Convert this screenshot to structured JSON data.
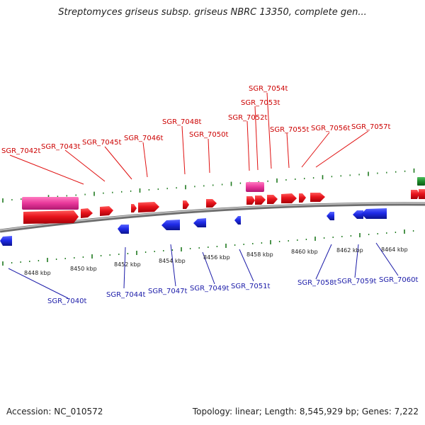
{
  "title": "Streptomyces griseus subsp. griseus NBRC 13350, complete gen...",
  "footer": {
    "accession": "Accession: NC_010572",
    "summary": "Topology: linear; Length: 8,545,929 bp; Genes: 7,222"
  },
  "colors": {
    "forward_gene": "#e8141c",
    "reverse_gene": "#1f2be8",
    "rna_feature": "#e8379a",
    "other_feature": "#1e8a2a",
    "backbone": "#8a8a8a",
    "tick": "#1f7a1f",
    "forward_label": "#cc0000",
    "reverse_label": "#1a1aa8"
  },
  "scale_labels": [
    "8448 kbp",
    "8450 kbp",
    "8452 kbp",
    "8454 kbp",
    "8456 kbp",
    "8458 kbp",
    "8460 kbp",
    "8462 kbp",
    "8464 kbp"
  ],
  "forward_gene_labels": [
    "SGR_7042t",
    "SGR_7043t",
    "SGR_7045t",
    "SGR_7046t",
    "SGR_7048t",
    "SGR_7050t",
    "SGR_7052t",
    "SGR_7053t",
    "SGR_7054t",
    "SGR_7055t",
    "SGR_7056t",
    "SGR_7057t"
  ],
  "reverse_gene_labels": [
    "SGR_7040t",
    "SGR_7044t",
    "SGR_7047t",
    "SGR_7049t",
    "SGR_7051t",
    "SGR_7058t",
    "SGR_7059t",
    "SGR_7060t"
  ]
}
